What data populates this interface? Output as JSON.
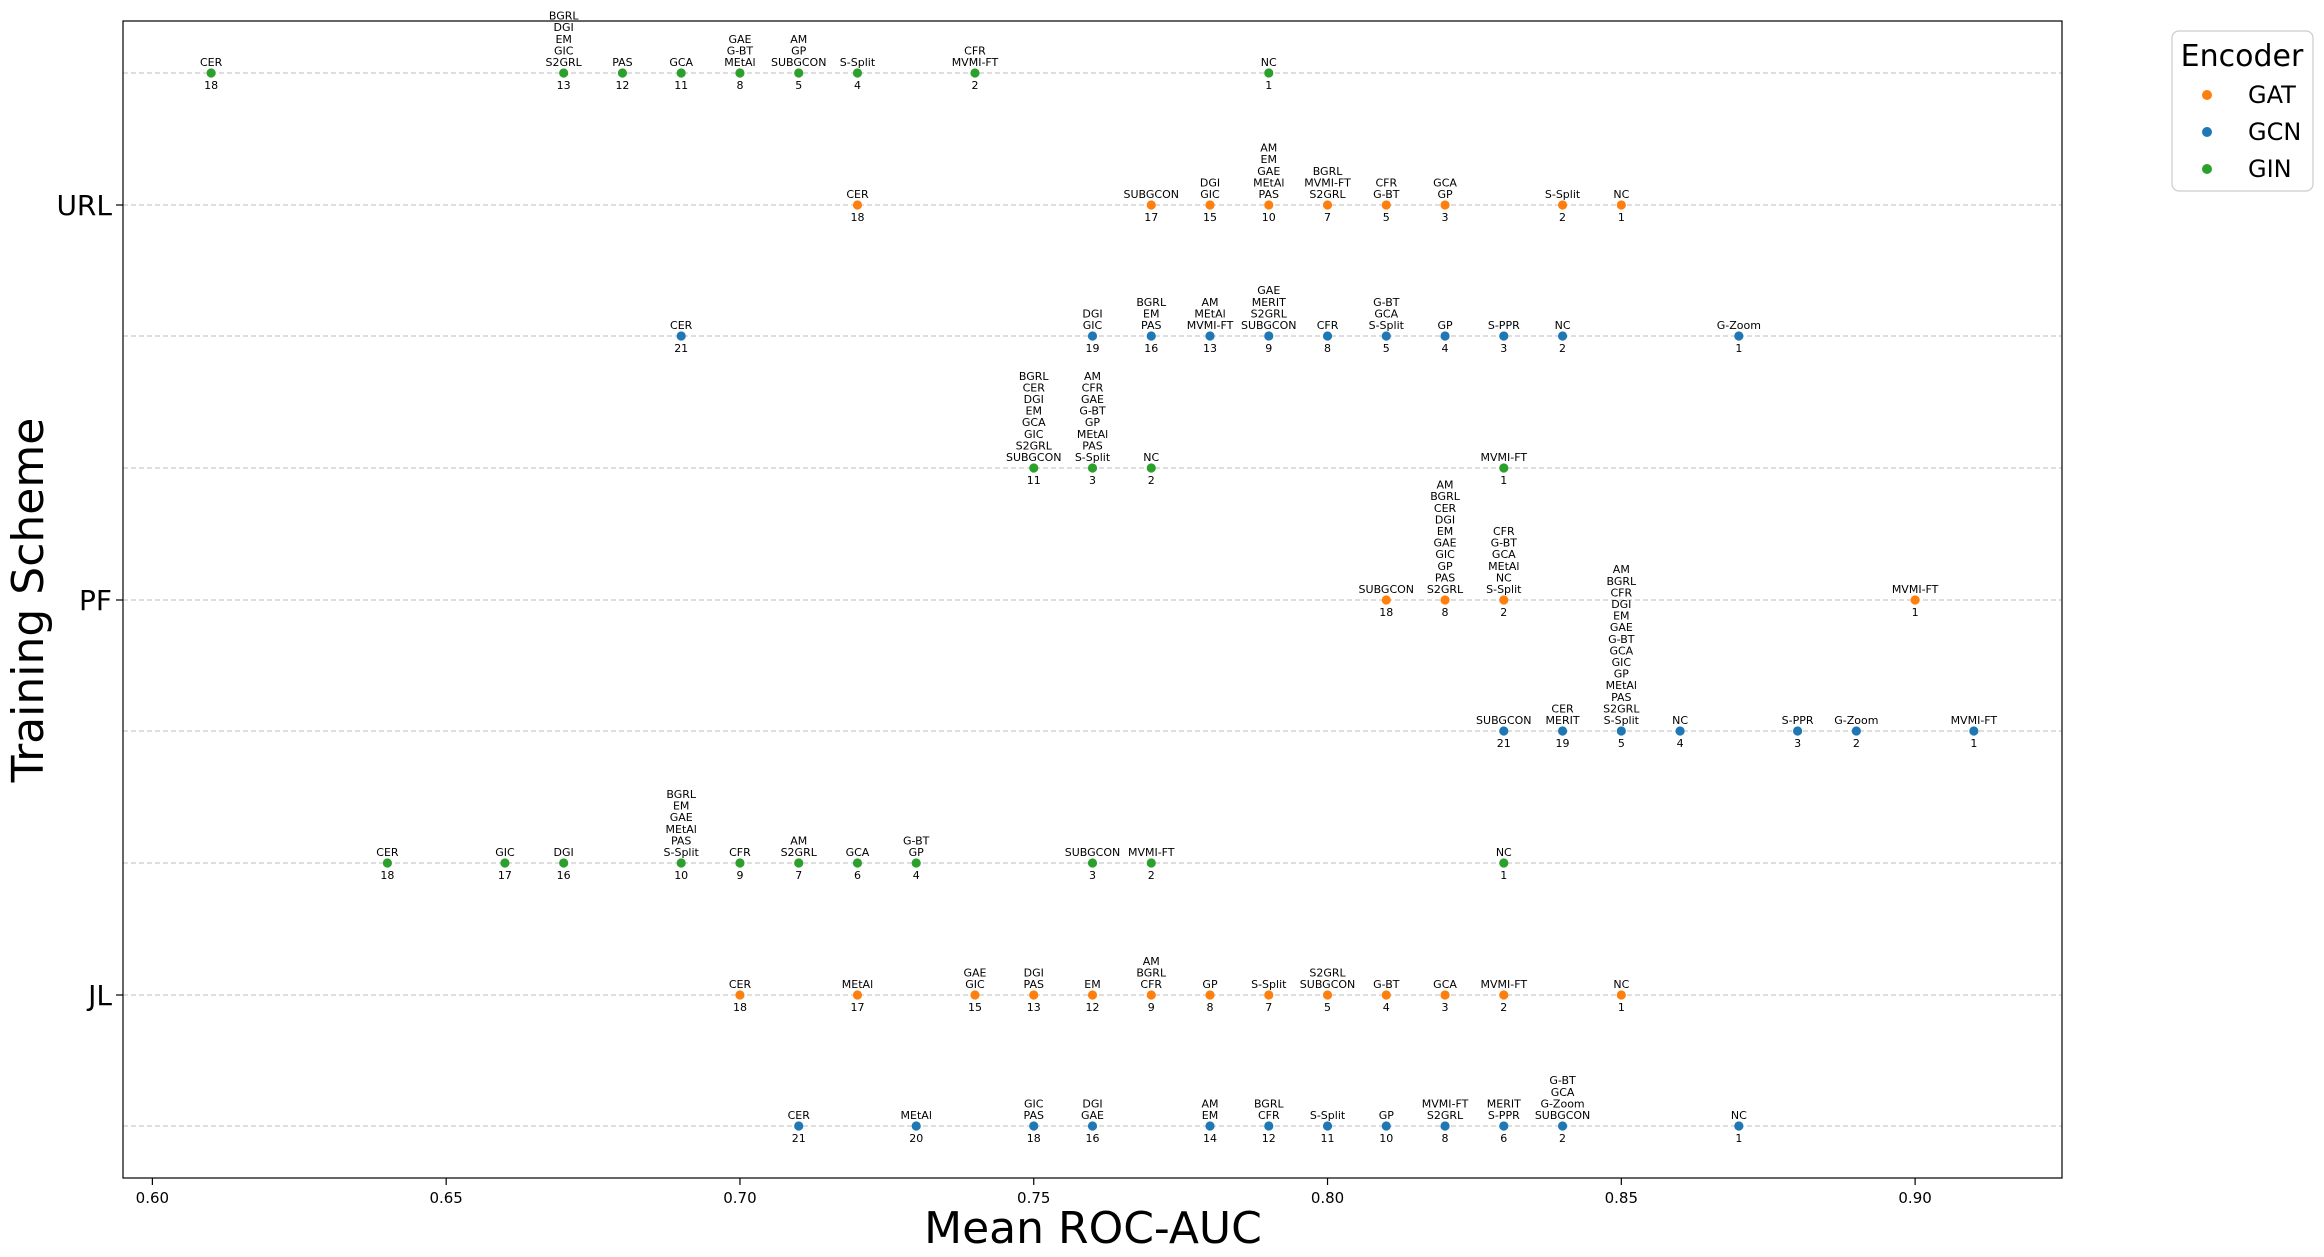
{
  "chart_data": {
    "type": "scatter",
    "xlabel": "Mean ROC-AUC",
    "ylabel": "Training Scheme",
    "xlim": [
      0.595,
      0.925
    ],
    "x_ticks": [
      "0.60",
      "0.65",
      "0.70",
      "0.75",
      "0.80",
      "0.85",
      "0.90"
    ],
    "x_tick_values": [
      0.6,
      0.65,
      0.7,
      0.75,
      0.8,
      0.85,
      0.9
    ],
    "y_ticks": [
      "URL",
      "PF",
      "JL"
    ],
    "grid": "horizontal dashed per row",
    "legend": {
      "title": "Encoder",
      "placement": "outside-top-right",
      "entries": [
        {
          "name": "GAT",
          "color": "#ff7f0e"
        },
        {
          "name": "GCN",
          "color": "#1f77b4"
        },
        {
          "name": "GIN",
          "color": "#2ca02c"
        }
      ]
    },
    "rows": [
      {
        "scheme": "URL",
        "encoder": "GIN",
        "points": [
          {
            "x": 0.61,
            "labels": [
              "CER"
            ],
            "rank": "18"
          },
          {
            "x": 0.67,
            "labels": [
              "BGRL",
              "DGI",
              "EM",
              "GIC",
              "S2GRL"
            ],
            "rank": "13"
          },
          {
            "x": 0.68,
            "labels": [
              "PAS"
            ],
            "rank": "12"
          },
          {
            "x": 0.69,
            "labels": [
              "GCA"
            ],
            "rank": "11"
          },
          {
            "x": 0.7,
            "labels": [
              "GAE",
              "G-BT",
              "MEtAl"
            ],
            "rank": "8"
          },
          {
            "x": 0.71,
            "labels": [
              "AM",
              "GP",
              "SUBGCON"
            ],
            "rank": "5"
          },
          {
            "x": 0.72,
            "labels": [
              "S-Split"
            ],
            "rank": "4"
          },
          {
            "x": 0.74,
            "labels": [
              "CFR",
              "MVMI-FT"
            ],
            "rank": "2"
          },
          {
            "x": 0.79,
            "labels": [
              "NC"
            ],
            "rank": "1"
          }
        ]
      },
      {
        "scheme": "URL",
        "encoder": "GAT",
        "points": [
          {
            "x": 0.72,
            "labels": [
              "CER"
            ],
            "rank": "18"
          },
          {
            "x": 0.77,
            "labels": [
              "SUBGCON"
            ],
            "rank": "17"
          },
          {
            "x": 0.78,
            "labels": [
              "DGI",
              "GIC"
            ],
            "rank": "15"
          },
          {
            "x": 0.79,
            "labels": [
              "AM",
              "EM",
              "GAE",
              "MEtAl",
              "PAS"
            ],
            "rank": "10"
          },
          {
            "x": 0.8,
            "labels": [
              "BGRL",
              "MVMI-FT",
              "S2GRL"
            ],
            "rank": "7"
          },
          {
            "x": 0.81,
            "labels": [
              "CFR",
              "G-BT"
            ],
            "rank": "5"
          },
          {
            "x": 0.82,
            "labels": [
              "GCA",
              "GP"
            ],
            "rank": "3"
          },
          {
            "x": 0.84,
            "labels": [
              "S-Split"
            ],
            "rank": "2"
          },
          {
            "x": 0.85,
            "labels": [
              "NC"
            ],
            "rank": "1"
          }
        ]
      },
      {
        "scheme": "URL",
        "encoder": "GCN",
        "points": [
          {
            "x": 0.69,
            "labels": [
              "CER"
            ],
            "rank": "21"
          },
          {
            "x": 0.76,
            "labels": [
              "DGI",
              "GIC"
            ],
            "rank": "19"
          },
          {
            "x": 0.77,
            "labels": [
              "BGRL",
              "EM",
              "PAS"
            ],
            "rank": "16"
          },
          {
            "x": 0.78,
            "labels": [
              "AM",
              "MEtAl",
              "MVMI-FT"
            ],
            "rank": "13"
          },
          {
            "x": 0.79,
            "labels": [
              "GAE",
              "MERIT",
              "S2GRL",
              "SUBGCON"
            ],
            "rank": "9"
          },
          {
            "x": 0.8,
            "labels": [
              "CFR"
            ],
            "rank": "8"
          },
          {
            "x": 0.81,
            "labels": [
              "G-BT",
              "GCA",
              "S-Split"
            ],
            "rank": "5"
          },
          {
            "x": 0.82,
            "labels": [
              "GP"
            ],
            "rank": "4"
          },
          {
            "x": 0.83,
            "labels": [
              "S-PPR"
            ],
            "rank": "3"
          },
          {
            "x": 0.84,
            "labels": [
              "NC"
            ],
            "rank": "2"
          },
          {
            "x": 0.87,
            "labels": [
              "G-Zoom"
            ],
            "rank": "1"
          }
        ]
      },
      {
        "scheme": "PF",
        "encoder": "GIN",
        "points": [
          {
            "x": 0.75,
            "labels": [
              "BGRL",
              "CER",
              "DGI",
              "EM",
              "GCA",
              "GIC",
              "S2GRL",
              "SUBGCON"
            ],
            "rank": "11"
          },
          {
            "x": 0.76,
            "labels": [
              "AM",
              "CFR",
              "GAE",
              "G-BT",
              "GP",
              "MEtAl",
              "PAS",
              "S-Split"
            ],
            "rank": "3"
          },
          {
            "x": 0.77,
            "labels": [
              "NC"
            ],
            "rank": "2"
          },
          {
            "x": 0.83,
            "labels": [
              "MVMI-FT"
            ],
            "rank": "1"
          }
        ]
      },
      {
        "scheme": "PF",
        "encoder": "GAT",
        "points": [
          {
            "x": 0.81,
            "labels": [
              "SUBGCON"
            ],
            "rank": "18"
          },
          {
            "x": 0.82,
            "labels": [
              "AM",
              "BGRL",
              "CER",
              "DGI",
              "EM",
              "GAE",
              "GIC",
              "GP",
              "PAS",
              "S2GRL"
            ],
            "rank": "8"
          },
          {
            "x": 0.83,
            "labels": [
              "CFR",
              "G-BT",
              "GCA",
              "MEtAl",
              "NC",
              "S-Split"
            ],
            "rank": "2"
          },
          {
            "x": 0.9,
            "labels": [
              "MVMI-FT"
            ],
            "rank": "1"
          }
        ]
      },
      {
        "scheme": "PF",
        "encoder": "GCN",
        "points": [
          {
            "x": 0.83,
            "labels": [
              "SUBGCON"
            ],
            "rank": "21"
          },
          {
            "x": 0.84,
            "labels": [
              "CER",
              "MERIT"
            ],
            "rank": "19"
          },
          {
            "x": 0.85,
            "labels": [
              "AM",
              "BGRL",
              "CFR",
              "DGI",
              "EM",
              "GAE",
              "G-BT",
              "GCA",
              "GIC",
              "GP",
              "MEtAl",
              "PAS",
              "S2GRL",
              "S-Split"
            ],
            "rank": "5"
          },
          {
            "x": 0.86,
            "labels": [
              "NC"
            ],
            "rank": "4"
          },
          {
            "x": 0.88,
            "labels": [
              "S-PPR"
            ],
            "rank": "3"
          },
          {
            "x": 0.89,
            "labels": [
              "G-Zoom"
            ],
            "rank": "2"
          },
          {
            "x": 0.91,
            "labels": [
              "MVMI-FT"
            ],
            "rank": "1"
          }
        ]
      },
      {
        "scheme": "JL",
        "encoder": "GIN",
        "points": [
          {
            "x": 0.64,
            "labels": [
              "CER"
            ],
            "rank": "18"
          },
          {
            "x": 0.66,
            "labels": [
              "GIC"
            ],
            "rank": "17"
          },
          {
            "x": 0.67,
            "labels": [
              "DGI"
            ],
            "rank": "16"
          },
          {
            "x": 0.69,
            "labels": [
              "BGRL",
              "EM",
              "GAE",
              "MEtAl",
              "PAS",
              "S-Split"
            ],
            "rank": "10"
          },
          {
            "x": 0.7,
            "labels": [
              "CFR"
            ],
            "rank": "9"
          },
          {
            "x": 0.71,
            "labels": [
              "AM",
              "S2GRL"
            ],
            "rank": "7"
          },
          {
            "x": 0.72,
            "labels": [
              "GCA"
            ],
            "rank": "6"
          },
          {
            "x": 0.73,
            "labels": [
              "G-BT",
              "GP"
            ],
            "rank": "4"
          },
          {
            "x": 0.76,
            "labels": [
              "SUBGCON"
            ],
            "rank": "3"
          },
          {
            "x": 0.77,
            "labels": [
              "MVMI-FT"
            ],
            "rank": "2"
          },
          {
            "x": 0.83,
            "labels": [
              "NC"
            ],
            "rank": "1"
          }
        ]
      },
      {
        "scheme": "JL",
        "encoder": "GAT",
        "points": [
          {
            "x": 0.7,
            "labels": [
              "CER"
            ],
            "rank": "18"
          },
          {
            "x": 0.72,
            "labels": [
              "MEtAl"
            ],
            "rank": "17"
          },
          {
            "x": 0.74,
            "labels": [
              "GAE",
              "GIC"
            ],
            "rank": "15"
          },
          {
            "x": 0.75,
            "labels": [
              "DGI",
              "PAS"
            ],
            "rank": "13"
          },
          {
            "x": 0.76,
            "labels": [
              "EM"
            ],
            "rank": "12"
          },
          {
            "x": 0.77,
            "labels": [
              "AM",
              "BGRL",
              "CFR"
            ],
            "rank": "9"
          },
          {
            "x": 0.78,
            "labels": [
              "GP"
            ],
            "rank": "8"
          },
          {
            "x": 0.79,
            "labels": [
              "S-Split"
            ],
            "rank": "7"
          },
          {
            "x": 0.8,
            "labels": [
              "S2GRL",
              "SUBGCON"
            ],
            "rank": "5"
          },
          {
            "x": 0.81,
            "labels": [
              "G-BT"
            ],
            "rank": "4"
          },
          {
            "x": 0.82,
            "labels": [
              "GCA"
            ],
            "rank": "3"
          },
          {
            "x": 0.83,
            "labels": [
              "MVMI-FT"
            ],
            "rank": "2"
          },
          {
            "x": 0.85,
            "labels": [
              "NC"
            ],
            "rank": "1"
          }
        ]
      },
      {
        "scheme": "JL",
        "encoder": "GCN",
        "points": [
          {
            "x": 0.71,
            "labels": [
              "CER"
            ],
            "rank": "21"
          },
          {
            "x": 0.73,
            "labels": [
              "MEtAl"
            ],
            "rank": "20"
          },
          {
            "x": 0.75,
            "labels": [
              "GIC",
              "PAS"
            ],
            "rank": "18"
          },
          {
            "x": 0.76,
            "labels": [
              "DGI",
              "GAE"
            ],
            "rank": "16"
          },
          {
            "x": 0.78,
            "labels": [
              "AM",
              "EM"
            ],
            "rank": "14"
          },
          {
            "x": 0.79,
            "labels": [
              "BGRL",
              "CFR"
            ],
            "rank": "12"
          },
          {
            "x": 0.8,
            "labels": [
              "S-Split"
            ],
            "rank": "11"
          },
          {
            "x": 0.81,
            "labels": [
              "GP"
            ],
            "rank": "10"
          },
          {
            "x": 0.82,
            "labels": [
              "MVMI-FT",
              "S2GRL"
            ],
            "rank": "8"
          },
          {
            "x": 0.83,
            "labels": [
              "MERIT",
              "S-PPR"
            ],
            "rank": "6"
          },
          {
            "x": 0.84,
            "labels": [
              "G-BT",
              "GCA",
              "G-Zoom",
              "SUBGCON"
            ],
            "rank": "2"
          },
          {
            "x": 0.87,
            "labels": [
              "NC"
            ],
            "rank": "1"
          }
        ]
      }
    ]
  }
}
